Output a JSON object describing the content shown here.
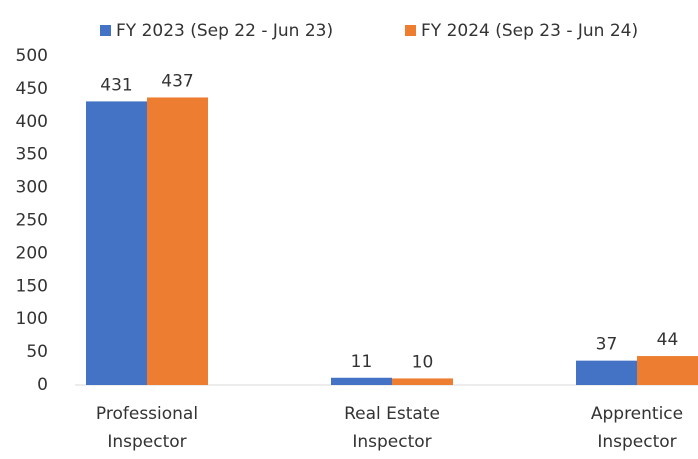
{
  "chart_data": {
    "type": "bar",
    "categories": [
      "Professional Inspector",
      "Real Estate Inspector",
      "Apprentice Inspector"
    ],
    "series": [
      {
        "name": "FY 2023 (Sep 22 - Jun 23)",
        "color": "#4472c4",
        "values": [
          431,
          11,
          37
        ]
      },
      {
        "name": "FY 2024 (Sep 23 - Jun 24)",
        "color": "#ed7d31",
        "values": [
          437,
          10,
          44
        ]
      }
    ],
    "ylim": [
      0,
      500
    ],
    "yticks": [
      0,
      50,
      100,
      150,
      200,
      250,
      300,
      350,
      400,
      450,
      500
    ],
    "legend": "top"
  }
}
